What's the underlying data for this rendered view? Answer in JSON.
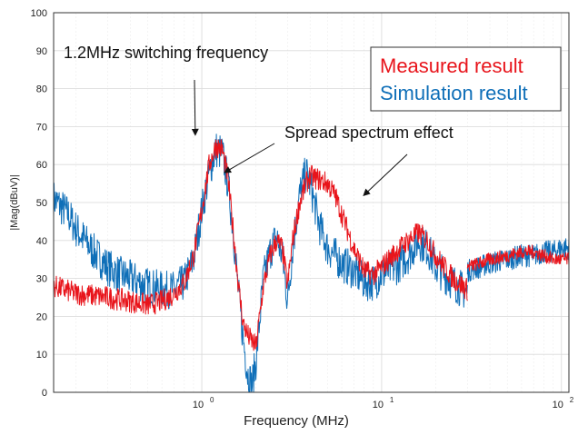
{
  "chart_data": {
    "type": "line",
    "title": "",
    "xlabel": "Frequency (MHz)",
    "ylabel": "|Mag(dBuV)|",
    "x_scale": "log",
    "xlim": [
      0.15,
      110
    ],
    "ylim": [
      0,
      100
    ],
    "x_ticks": [
      {
        "value": 1,
        "base": "10",
        "exp": "0"
      },
      {
        "value": 10,
        "base": "10",
        "exp": "1"
      },
      {
        "value": 100,
        "base": "10",
        "exp": "2"
      }
    ],
    "y_ticks": [
      0,
      10,
      20,
      30,
      40,
      50,
      60,
      70,
      80,
      90,
      100
    ],
    "grid": true,
    "legend": {
      "placement": "top-right",
      "entries": [
        {
          "label": "Measured result",
          "color": "#e8141b"
        },
        {
          "label": "Simulation result",
          "color": "#0f6fb8"
        }
      ]
    },
    "annotations": [
      {
        "text": "1.2MHz switching frequency",
        "arrow_to": [
          0.92,
          68
        ]
      },
      {
        "text": "Spread spectrum effect",
        "arrow_to": [
          1.35,
          58
        ]
      },
      {
        "text": "",
        "arrow_to": [
          8.0,
          52
        ]
      }
    ],
    "series": [
      {
        "name": "Measured result",
        "color": "#e8141b",
        "x": [
          0.15,
          0.2,
          0.3,
          0.4,
          0.5,
          0.6,
          0.7,
          0.8,
          0.9,
          1.0,
          1.1,
          1.2,
          1.3,
          1.4,
          1.5,
          1.6,
          1.7,
          1.8,
          2.0,
          2.2,
          2.4,
          2.6,
          2.8,
          3.0,
          3.2,
          3.5,
          3.8,
          4.0,
          4.5,
          5.0,
          5.5,
          6.0,
          7.0,
          8.0,
          9.0,
          10,
          12,
          14,
          16,
          18,
          20,
          25,
          30
        ],
        "y": [
          28,
          26,
          25,
          24,
          23,
          24,
          26,
          29,
          36,
          48,
          60,
          65,
          64,
          56,
          42,
          28,
          18,
          15,
          12,
          28,
          36,
          40,
          38,
          28,
          40,
          50,
          55,
          57,
          56,
          55,
          52,
          47,
          38,
          32,
          31,
          33,
          37,
          40,
          42,
          40,
          36,
          30,
          27
        ],
        "segment2": {
          "x": [
            30,
            35,
            40,
            50,
            60,
            70,
            80,
            90,
            100,
            110
          ],
          "y": [
            33,
            34,
            35,
            36,
            37,
            37,
            36,
            35,
            35,
            35
          ]
        },
        "noise": 3
      },
      {
        "name": "Simulation result",
        "color": "#0f6fb8",
        "x": [
          0.15,
          0.18,
          0.2,
          0.25,
          0.3,
          0.35,
          0.4,
          0.5,
          0.6,
          0.7,
          0.8,
          0.9,
          1.0,
          1.1,
          1.2,
          1.3,
          1.4,
          1.5,
          1.6,
          1.7,
          1.8,
          1.9,
          2.0,
          2.2,
          2.4,
          2.6,
          2.8,
          3.0,
          3.2,
          3.5,
          3.8,
          4.0,
          4.5,
          5.0,
          5.5,
          6.0,
          7.0,
          8.0,
          9.0,
          10,
          12,
          14,
          16,
          18,
          20,
          25,
          30
        ],
        "y": [
          51,
          47,
          43,
          37,
          33,
          31,
          30,
          28,
          27,
          27,
          29,
          35,
          48,
          58,
          64,
          63,
          55,
          42,
          26,
          14,
          5,
          2,
          8,
          30,
          37,
          41,
          36,
          24,
          38,
          52,
          58,
          55,
          44,
          38,
          36,
          34,
          32,
          29,
          29,
          31,
          33,
          36,
          40,
          38,
          33,
          29,
          26
        ],
        "segment2": {
          "x": [
            30,
            35,
            40,
            50,
            60,
            70,
            80,
            90,
            100,
            110
          ],
          "y": [
            32,
            33,
            34,
            35,
            36,
            36,
            37,
            37,
            38,
            38
          ]
        },
        "noise": 5
      }
    ]
  }
}
